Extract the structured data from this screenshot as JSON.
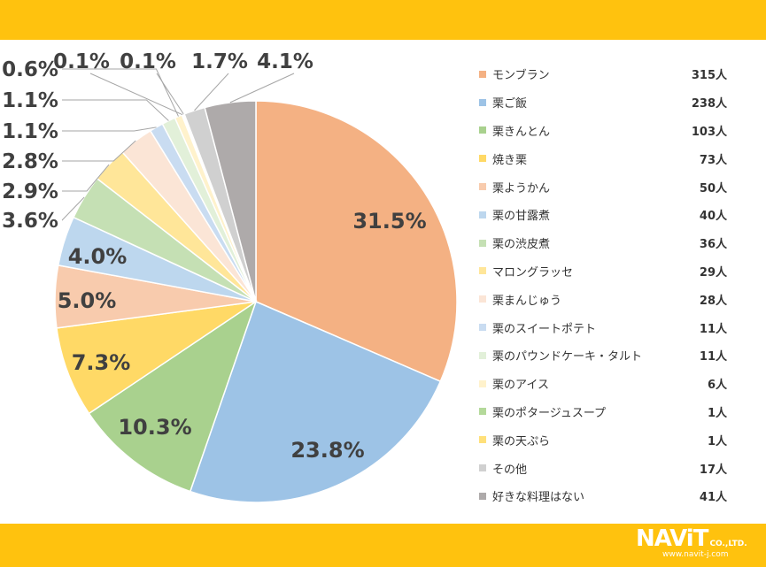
{
  "colors": {
    "band": "#ffc20e",
    "slice_colors": [
      "#f4b183",
      "#9dc3e6",
      "#a9d18e",
      "#ffd966",
      "#f8cbad",
      "#bdd7ee",
      "#c5e0b4",
      "#ffe699",
      "#fbe5d6",
      "#c9dcf1",
      "#e2f0d9",
      "#fff2cc",
      "#b4d99a",
      "#ffe07a",
      "#d0d0d0",
      "#aeaaaa"
    ]
  },
  "chart_data": {
    "type": "pie",
    "start_angle_deg": 0,
    "direction": "clockwise",
    "slices": [
      {
        "name": "モンブラン",
        "count": "315人",
        "value": 315,
        "pct_label": "31.5%"
      },
      {
        "name": "栗ご飯",
        "count": "238人",
        "value": 238,
        "pct_label": "23.8%"
      },
      {
        "name": "栗きんとん",
        "count": "103人",
        "value": 103,
        "pct_label": "10.3%"
      },
      {
        "name": "焼き栗",
        "count": "73人",
        "value": 73,
        "pct_label": "7.3%"
      },
      {
        "name": "栗ようかん",
        "count": "50人",
        "value": 50,
        "pct_label": "5.0%"
      },
      {
        "name": "栗の甘露煮",
        "count": "40人",
        "value": 40,
        "pct_label": "4.0%"
      },
      {
        "name": "栗の渋皮煮",
        "count": "36人",
        "value": 36,
        "pct_label": "3.6%"
      },
      {
        "name": "マロングラッセ",
        "count": "29人",
        "value": 29,
        "pct_label": "2.9%"
      },
      {
        "name": "栗まんじゅう",
        "count": "28人",
        "value": 28,
        "pct_label": "2.8%"
      },
      {
        "name": "栗のスイートポテト",
        "count": "11人",
        "value": 11,
        "pct_label": "1.1%"
      },
      {
        "name": "栗のパウンドケーキ・タルト",
        "count": "11人",
        "value": 11,
        "pct_label": "1.1%"
      },
      {
        "name": "栗のアイス",
        "count": "6人",
        "value": 6,
        "pct_label": "0.6%"
      },
      {
        "name": "栗のポタージュスープ",
        "count": "1人",
        "value": 1,
        "pct_label": "0.1%"
      },
      {
        "name": "栗の天ぷら",
        "count": "1人",
        "value": 1,
        "pct_label": "0.1%"
      },
      {
        "name": "その他",
        "count": "17人",
        "value": 17,
        "pct_label": "1.7%"
      },
      {
        "name": "好きな料理はない",
        "count": "41人",
        "value": 41,
        "pct_label": "4.1%"
      }
    ],
    "legend_position": "right"
  },
  "logo": {
    "main": "NAViT",
    "co": "CO.,LTD.",
    "url": "www.navit-j.com"
  }
}
